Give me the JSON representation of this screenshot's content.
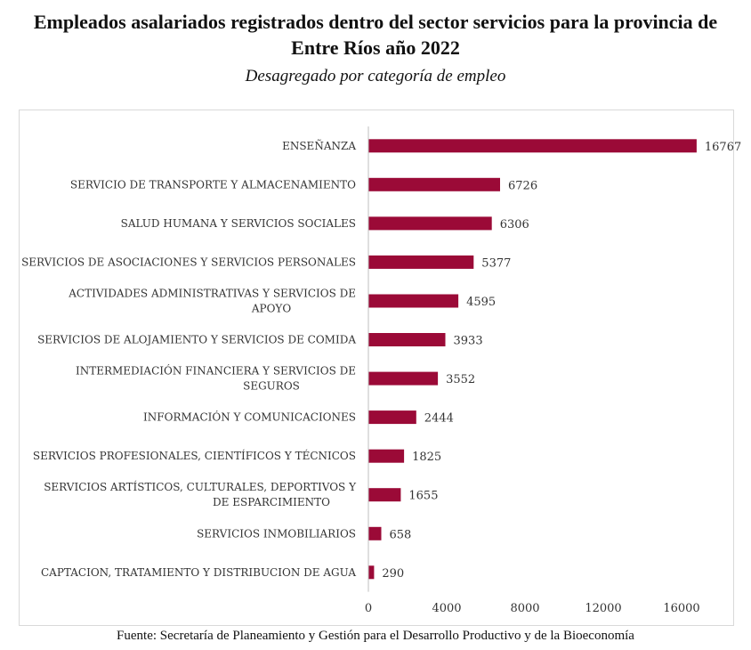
{
  "chart_data": {
    "type": "bar",
    "orientation": "horizontal",
    "title_lines": [
      "Empleados asalariados registrados dentro del sector servicios para la provincia de",
      "Entre Ríos año 2022"
    ],
    "subtitle": "Desagregado por categoría de empleo",
    "categories": [
      [
        "ENSEÑANZA"
      ],
      [
        "SERVICIO DE TRANSPORTE Y ALMACENAMIENTO"
      ],
      [
        "SALUD HUMANA Y SERVICIOS SOCIALES"
      ],
      [
        "SERVICIOS DE ASOCIACIONES Y SERVICIOS PERSONALES"
      ],
      [
        "ACTIVIDADES ADMINISTRATIVAS Y SERVICIOS DE",
        "APOYO"
      ],
      [
        "SERVICIOS DE ALOJAMIENTO Y SERVICIOS DE COMIDA"
      ],
      [
        "INTERMEDIACIÓN FINANCIERA Y SERVICIOS DE",
        "SEGUROS"
      ],
      [
        "INFORMACIÓN Y COMUNICACIONES"
      ],
      [
        "SERVICIOS PROFESIONALES, CIENTÍFICOS Y TÉCNICOS"
      ],
      [
        "SERVICIOS  ARTÍSTICOS, CULTURALES, DEPORTIVOS  Y",
        "DE ESPARCIMIENTO"
      ],
      [
        "SERVICIOS INMOBILIARIOS"
      ],
      [
        "CAPTACION, TRATAMIENTO Y DISTRIBUCION DE AGUA"
      ]
    ],
    "values": [
      16767,
      6726,
      6306,
      5377,
      4595,
      3933,
      3552,
      2444,
      1825,
      1655,
      658,
      290
    ],
    "xlim": [
      0,
      18000
    ],
    "xticks": [
      0,
      4000,
      8000,
      12000,
      16000
    ],
    "bar_color": "#9b0a37",
    "grid": false,
    "legend": "none"
  },
  "source": "Fuente: Secretaría de Planeamiento y Gestión para el Desarrollo Productivo y de la Bioeconomía"
}
